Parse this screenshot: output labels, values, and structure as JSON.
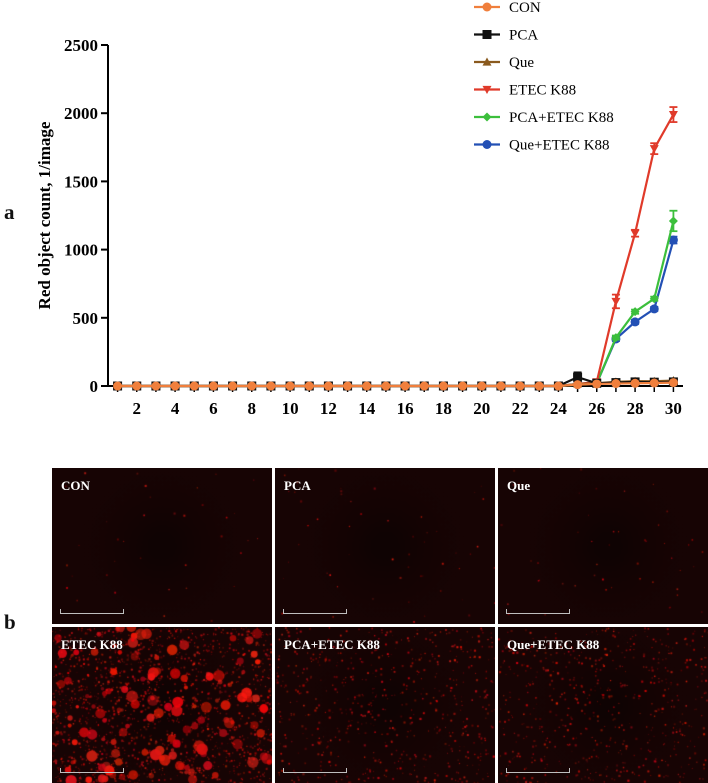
{
  "panel_labels": {
    "a": "a",
    "b": "b"
  },
  "chart_data": {
    "type": "line",
    "ylabel": "Red object count, 1/image",
    "xlabel": "",
    "xlim": [
      0.5,
      30.5
    ],
    "ylim": [
      0,
      2500
    ],
    "y_ticks": [
      0,
      500,
      1000,
      1500,
      2000,
      2500
    ],
    "x_tick_labels": [
      2,
      4,
      6,
      8,
      10,
      12,
      14,
      16,
      18,
      20,
      22,
      24,
      26,
      28,
      30
    ],
    "legend_position": "top-right",
    "series": [
      {
        "name": "CON",
        "color": "#f07f3c",
        "marker": "circle",
        "x": [
          1,
          2,
          3,
          4,
          5,
          6,
          7,
          8,
          9,
          10,
          11,
          12,
          13,
          14,
          15,
          16,
          17,
          18,
          19,
          20,
          21,
          22,
          23,
          24,
          25,
          26,
          27,
          28,
          29,
          30
        ],
        "values": [
          0,
          0,
          0,
          0,
          0,
          0,
          0,
          0,
          0,
          0,
          0,
          0,
          0,
          0,
          0,
          0,
          0,
          0,
          0,
          0,
          0,
          0,
          0,
          0,
          10,
          15,
          18,
          20,
          22,
          25
        ]
      },
      {
        "name": "PCA",
        "color": "#111111",
        "marker": "square",
        "x": [
          1,
          2,
          3,
          4,
          5,
          6,
          7,
          8,
          9,
          10,
          11,
          12,
          13,
          14,
          15,
          16,
          17,
          18,
          19,
          20,
          21,
          22,
          23,
          24,
          25,
          26,
          27,
          28,
          29,
          30
        ],
        "values": [
          0,
          0,
          0,
          0,
          0,
          0,
          0,
          0,
          0,
          0,
          0,
          0,
          0,
          0,
          0,
          0,
          0,
          0,
          0,
          0,
          0,
          0,
          0,
          0,
          65,
          20,
          25,
          30,
          28,
          30
        ],
        "error": [
          0,
          0,
          0,
          0,
          0,
          0,
          0,
          0,
          0,
          0,
          0,
          0,
          0,
          0,
          0,
          0,
          0,
          0,
          0,
          0,
          0,
          0,
          0,
          0,
          35,
          10,
          8,
          8,
          8,
          8
        ]
      },
      {
        "name": "Que",
        "color": "#8a5a1e",
        "marker": "triangle-up",
        "x": [
          1,
          2,
          3,
          4,
          5,
          6,
          7,
          8,
          9,
          10,
          11,
          12,
          13,
          14,
          15,
          16,
          17,
          18,
          19,
          20,
          21,
          22,
          23,
          24,
          25,
          26,
          27,
          28,
          29,
          30
        ],
        "values": [
          0,
          0,
          0,
          0,
          0,
          0,
          0,
          0,
          0,
          0,
          0,
          0,
          0,
          0,
          0,
          0,
          0,
          0,
          0,
          0,
          0,
          0,
          0,
          0,
          15,
          20,
          30,
          35,
          35,
          40
        ]
      },
      {
        "name": "ETEC K88",
        "color": "#e03a2a",
        "marker": "triangle-down",
        "x": [
          1,
          2,
          3,
          4,
          5,
          6,
          7,
          8,
          9,
          10,
          11,
          12,
          13,
          14,
          15,
          16,
          17,
          18,
          19,
          20,
          21,
          22,
          23,
          24,
          25,
          26,
          27,
          28,
          29,
          30
        ],
        "values": [
          0,
          0,
          0,
          0,
          0,
          0,
          0,
          0,
          0,
          0,
          0,
          0,
          0,
          0,
          0,
          0,
          0,
          0,
          0,
          0,
          0,
          0,
          0,
          0,
          15,
          30,
          620,
          1120,
          1740,
          1990
        ],
        "error": [
          0,
          0,
          0,
          0,
          0,
          0,
          0,
          0,
          0,
          0,
          0,
          0,
          0,
          0,
          0,
          0,
          0,
          0,
          0,
          0,
          0,
          0,
          0,
          0,
          5,
          10,
          50,
          25,
          40,
          55
        ]
      },
      {
        "name": "PCA+ETEC K88",
        "color": "#3cbf3c",
        "marker": "diamond",
        "x": [
          1,
          2,
          3,
          4,
          5,
          6,
          7,
          8,
          9,
          10,
          11,
          12,
          13,
          14,
          15,
          16,
          17,
          18,
          19,
          20,
          21,
          22,
          23,
          24,
          25,
          26,
          27,
          28,
          29,
          30
        ],
        "values": [
          0,
          0,
          0,
          0,
          0,
          0,
          0,
          0,
          0,
          0,
          0,
          0,
          0,
          0,
          0,
          0,
          0,
          0,
          0,
          0,
          0,
          0,
          0,
          0,
          10,
          20,
          355,
          545,
          640,
          1210
        ],
        "error": [
          0,
          0,
          0,
          0,
          0,
          0,
          0,
          0,
          0,
          0,
          0,
          0,
          0,
          0,
          0,
          0,
          0,
          0,
          0,
          0,
          0,
          0,
          0,
          0,
          3,
          5,
          15,
          15,
          15,
          75
        ]
      },
      {
        "name": "Que+ETEC K88",
        "color": "#2350b5",
        "marker": "circle",
        "x": [
          1,
          2,
          3,
          4,
          5,
          6,
          7,
          8,
          9,
          10,
          11,
          12,
          13,
          14,
          15,
          16,
          17,
          18,
          19,
          20,
          21,
          22,
          23,
          24,
          25,
          26,
          27,
          28,
          29,
          30
        ],
        "values": [
          0,
          0,
          0,
          0,
          0,
          0,
          0,
          0,
          0,
          0,
          0,
          0,
          0,
          0,
          0,
          0,
          0,
          0,
          0,
          0,
          0,
          0,
          0,
          0,
          10,
          20,
          345,
          470,
          565,
          1070
        ],
        "error": [
          0,
          0,
          0,
          0,
          0,
          0,
          0,
          0,
          0,
          0,
          0,
          0,
          0,
          0,
          0,
          0,
          0,
          0,
          0,
          0,
          0,
          0,
          0,
          0,
          3,
          5,
          15,
          15,
          15,
          25
        ]
      }
    ]
  },
  "micrographs": [
    {
      "label": "CON",
      "intensity": 0.02,
      "blobs": 0
    },
    {
      "label": "PCA",
      "intensity": 0.03,
      "blobs": 0
    },
    {
      "label": "Que",
      "intensity": 0.03,
      "blobs": 0
    },
    {
      "label": "ETEC K88",
      "intensity": 0.9,
      "blobs": 1
    },
    {
      "label": "PCA+ETEC K88",
      "intensity": 0.35,
      "blobs": 0
    },
    {
      "label": "Que+ETEC K88",
      "intensity": 0.35,
      "blobs": 0
    }
  ]
}
